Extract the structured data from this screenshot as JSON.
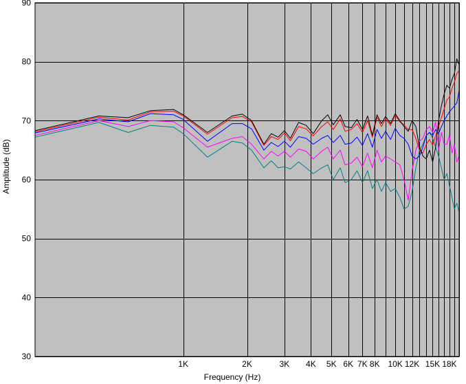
{
  "chart_data": {
    "type": "line",
    "xlabel": "Frequency (Hz)",
    "ylabel": "Amplitude (dB)",
    "x_scale": "log",
    "xlim": [
      200,
      20000
    ],
    "ylim": [
      30,
      90
    ],
    "grid": true,
    "y_ticks": [
      30,
      40,
      50,
      60,
      70,
      80,
      90
    ],
    "x_ticks": [
      {
        "value": 1000,
        "label": "1K"
      },
      {
        "value": 2000,
        "label": "2K"
      },
      {
        "value": 3000,
        "label": "3K"
      },
      {
        "value": 4000,
        "label": "4K"
      },
      {
        "value": 5000,
        "label": "5K"
      },
      {
        "value": 6000,
        "label": "6K"
      },
      {
        "value": 7000,
        "label": "7K"
      },
      {
        "value": 8000,
        "label": "8K"
      },
      {
        "value": 10000,
        "label": "10K"
      },
      {
        "value": 12000,
        "label": "12K"
      },
      {
        "value": 15000,
        "label": "15K"
      },
      {
        "value": 18000,
        "label": "18K"
      }
    ],
    "x_gridlines": [
      1000,
      2000,
      3000,
      4000,
      5000,
      6000,
      7000,
      8000,
      9000,
      10000,
      11000,
      12000,
      13000,
      14000,
      15000,
      16000,
      17000,
      18000,
      19000,
      20000
    ],
    "colors": {
      "plot_background": "#c0c0c0",
      "grid": "#000000",
      "frame": "#000000"
    },
    "series": [
      {
        "color": "#000000",
        "x": [
          200,
          400,
          550,
          700,
          900,
          1000,
          1300,
          1700,
          1900,
          2100,
          2400,
          2600,
          2800,
          3000,
          3200,
          3500,
          3800,
          4100,
          4500,
          4800,
          5100,
          5500,
          5800,
          6200,
          6600,
          7000,
          7400,
          7800,
          8200,
          8600,
          9000,
          9500,
          10000,
          10500,
          11000,
          11500,
          12000,
          12500,
          13000,
          13500,
          14000,
          14500,
          15000,
          15500,
          16000,
          16500,
          17000,
          17500,
          18000,
          18500,
          19000,
          19500,
          20000
        ],
        "y": [
          68.3,
          70.8,
          70.5,
          71.7,
          71.9,
          71.0,
          68.0,
          70.8,
          71.1,
          70.0,
          66.0,
          67.8,
          67.2,
          68.3,
          67.0,
          69.7,
          69.2,
          67.8,
          70.0,
          71.0,
          69.3,
          71.0,
          69.0,
          68.8,
          70.2,
          68.5,
          70.8,
          67.5,
          71.0,
          69.5,
          70.7,
          69.5,
          71.2,
          70.0,
          69.0,
          68.2,
          70.0,
          69.0,
          65.5,
          64.0,
          63.5,
          65.0,
          63.0,
          65.5,
          70.0,
          72.5,
          74.5,
          76.0,
          75.5,
          77.0,
          78.0,
          80.5,
          79.5
        ]
      },
      {
        "color": "#ff0000",
        "x": [
          200,
          400,
          550,
          700,
          900,
          1000,
          1300,
          1700,
          1900,
          2100,
          2400,
          2600,
          2800,
          3000,
          3200,
          3500,
          3800,
          4100,
          4500,
          4800,
          5100,
          5500,
          5800,
          6200,
          6600,
          7000,
          7400,
          7800,
          8200,
          8600,
          9000,
          9500,
          10000,
          10500,
          11000,
          11500,
          12000,
          12500,
          13000,
          13500,
          14000,
          14500,
          15000,
          15500,
          16000,
          16500,
          17000,
          17500,
          18000,
          18500,
          19000,
          19500,
          20000
        ],
        "y": [
          68.1,
          70.6,
          70.1,
          71.5,
          71.6,
          70.8,
          67.7,
          70.5,
          70.7,
          69.8,
          65.8,
          67.3,
          66.8,
          67.9,
          66.6,
          69.0,
          68.6,
          67.4,
          69.0,
          69.8,
          68.5,
          70.3,
          68.2,
          68.5,
          69.5,
          68.0,
          70.0,
          67.2,
          70.6,
          69.0,
          70.3,
          69.2,
          70.9,
          69.8,
          69.3,
          68.5,
          68.5,
          67.0,
          65.0,
          64.5,
          66.0,
          66.8,
          65.8,
          67.5,
          69.0,
          70.5,
          72.0,
          73.5,
          74.0,
          75.5,
          76.5,
          78.0,
          78.5
        ]
      },
      {
        "color": "#0000ff",
        "x": [
          200,
          400,
          550,
          700,
          900,
          1000,
          1300,
          1700,
          1900,
          2100,
          2400,
          2600,
          2800,
          3000,
          3200,
          3500,
          3800,
          4100,
          4500,
          4800,
          5100,
          5500,
          5800,
          6200,
          6600,
          7000,
          7400,
          7800,
          8200,
          8600,
          9000,
          9500,
          10000,
          10500,
          11000,
          11500,
          12000,
          12500,
          13000,
          13500,
          14000,
          14500,
          15000,
          15500,
          16000,
          16500,
          17000,
          17500,
          18000,
          18500,
          19000,
          19500,
          20000
        ],
        "y": [
          67.9,
          70.3,
          69.8,
          71.2,
          71.0,
          70.2,
          66.5,
          69.5,
          69.5,
          68.6,
          65.0,
          66.3,
          65.6,
          66.5,
          65.5,
          67.3,
          67.0,
          66.0,
          67.0,
          67.5,
          66.3,
          67.5,
          66.0,
          66.2,
          67.2,
          65.8,
          67.8,
          65.5,
          68.5,
          67.0,
          68.2,
          66.8,
          68.7,
          67.5,
          67.0,
          66.0,
          64.0,
          63.5,
          64.0,
          65.5,
          67.5,
          68.0,
          67.5,
          68.5,
          67.8,
          69.0,
          70.0,
          70.8,
          71.5,
          72.0,
          72.5,
          73.0,
          75.0
        ]
      },
      {
        "color": "#ff00ff",
        "x": [
          200,
          400,
          550,
          700,
          900,
          1000,
          1300,
          1700,
          1900,
          2100,
          2400,
          2600,
          2800,
          3000,
          3200,
          3500,
          3800,
          4100,
          4500,
          4800,
          5100,
          5500,
          5800,
          6200,
          6600,
          7000,
          7400,
          7800,
          8200,
          8600,
          9000,
          9500,
          10000,
          10500,
          11000,
          11500,
          12000,
          12500,
          13000,
          13500,
          14000,
          14500,
          15000,
          15500,
          16000,
          16500,
          17000,
          17500,
          18000,
          18500,
          19000,
          19500,
          20000
        ],
        "y": [
          67.5,
          70.0,
          69.0,
          70.0,
          69.8,
          68.8,
          65.5,
          67.0,
          67.3,
          66.0,
          63.5,
          64.8,
          64.0,
          64.8,
          63.8,
          65.2,
          64.8,
          63.5,
          64.8,
          65.5,
          63.5,
          65.0,
          62.5,
          62.8,
          63.8,
          62.2,
          64.5,
          62.0,
          65.0,
          63.0,
          64.0,
          63.5,
          63.0,
          62.5,
          60.0,
          56.5,
          61.5,
          65.0,
          66.5,
          67.0,
          68.5,
          69.0,
          68.0,
          69.8,
          65.0,
          68.0,
          66.0,
          66.0,
          67.5,
          64.5,
          66.0,
          63.0,
          64.0
        ]
      },
      {
        "color": "#008080",
        "x": [
          200,
          400,
          550,
          700,
          900,
          1000,
          1300,
          1700,
          1900,
          2100,
          2400,
          2600,
          2800,
          3000,
          3200,
          3500,
          3800,
          4100,
          4500,
          4800,
          5100,
          5500,
          5800,
          6200,
          6600,
          7000,
          7400,
          7800,
          8200,
          8600,
          9000,
          9500,
          10000,
          10500,
          11000,
          11500,
          12000,
          12500,
          13000,
          13500,
          14000,
          14500,
          15000,
          15500,
          16000,
          16500,
          17000,
          17500,
          18000,
          18500,
          19000,
          19500,
          20000
        ],
        "y": [
          67.2,
          69.7,
          68.0,
          69.2,
          68.9,
          67.8,
          63.8,
          66.5,
          66.2,
          65.0,
          62.0,
          63.2,
          62.0,
          62.2,
          61.8,
          63.0,
          62.0,
          61.0,
          62.0,
          62.5,
          60.0,
          62.0,
          59.5,
          60.0,
          61.5,
          59.5,
          61.5,
          58.5,
          60.0,
          58.0,
          59.5,
          58.0,
          58.5,
          57.0,
          55.0,
          55.5,
          58.0,
          62.0,
          65.0,
          66.0,
          67.5,
          68.0,
          67.0,
          65.5,
          64.0,
          62.0,
          60.0,
          61.0,
          59.0,
          57.0,
          55.0,
          56.0,
          54.5
        ]
      }
    ]
  }
}
